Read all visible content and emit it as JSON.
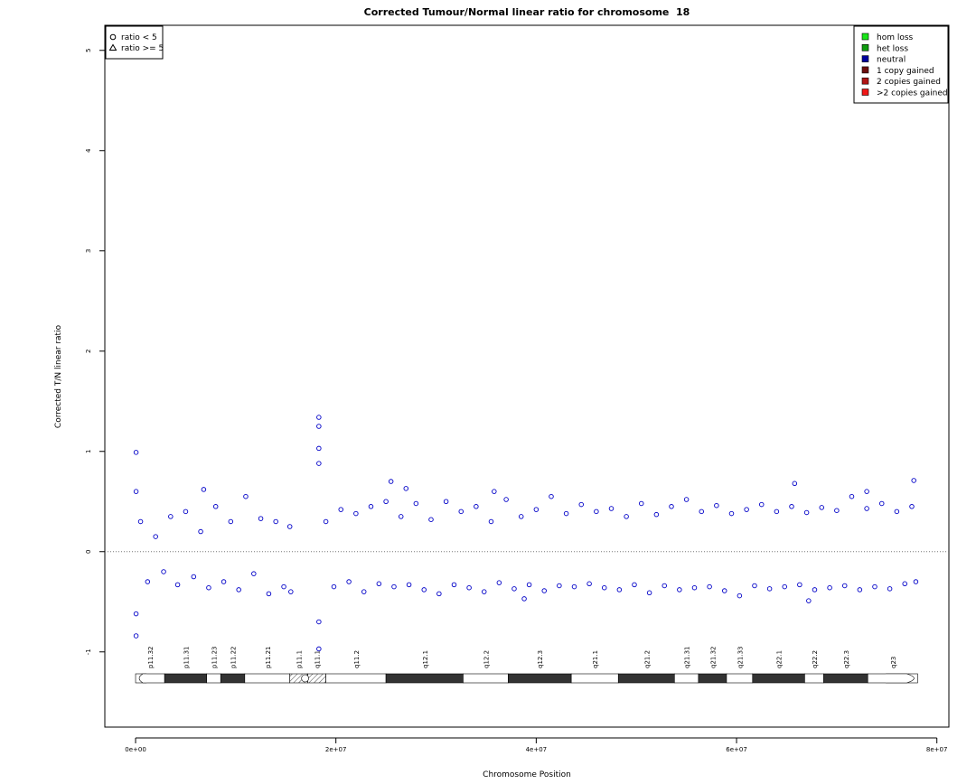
{
  "chart_data": {
    "type": "scatter",
    "title": "Corrected Tumour/Normal linear ratio for chromosome  18",
    "xlabel": "Chromosome Position",
    "ylabel": "Corrected T/N linear ratio",
    "xlim": [
      -3070000,
      81200000
    ],
    "ylim": [
      -1.75,
      5.25
    ],
    "xticks": [
      {
        "value": 0,
        "label": "0e+00"
      },
      {
        "value": 20000000,
        "label": "2e+07"
      },
      {
        "value": 40000000,
        "label": "4e+07"
      },
      {
        "value": 60000000,
        "label": "6e+07"
      },
      {
        "value": 80000000,
        "label": "8e+07"
      }
    ],
    "yticks": [
      -1,
      0,
      1,
      2,
      3,
      4,
      5
    ],
    "hline": 0,
    "series": [
      {
        "name": "neutral",
        "color": "#0000c8",
        "x": [
          50000,
          50000,
          50000,
          50000,
          6800000,
          18300000,
          18300000,
          18300000,
          18300000,
          18300000,
          18300000,
          25500000,
          27000000,
          35800000,
          38800000,
          65800000,
          67200000,
          77700000,
          73000000,
          500000,
          1200000,
          2000000,
          2800000,
          3500000,
          4200000,
          5000000,
          5800000,
          6500000,
          7300000,
          8000000,
          8800000,
          9500000,
          10300000,
          11000000,
          11800000,
          12500000,
          13300000,
          14000000,
          14800000,
          15400000,
          15500000,
          19000000,
          19800000,
          20500000,
          21300000,
          22000000,
          22800000,
          23500000,
          24300000,
          25000000,
          25800000,
          26500000,
          27300000,
          28000000,
          28800000,
          29500000,
          30300000,
          31000000,
          31800000,
          32500000,
          33300000,
          34000000,
          34800000,
          35500000,
          36300000,
          37000000,
          37800000,
          38500000,
          39300000,
          40000000,
          40800000,
          41500000,
          42300000,
          43000000,
          43800000,
          44500000,
          45300000,
          46000000,
          46800000,
          47500000,
          48300000,
          49000000,
          49800000,
          50500000,
          51300000,
          52000000,
          52800000,
          53500000,
          54300000,
          55000000,
          55800000,
          56500000,
          57300000,
          58000000,
          58800000,
          59500000,
          60300000,
          61000000,
          61800000,
          62500000,
          63300000,
          64000000,
          64800000,
          65500000,
          66300000,
          67000000,
          67800000,
          68500000,
          69300000,
          70000000,
          70800000,
          71500000,
          72300000,
          73000000,
          73800000,
          74500000,
          75300000,
          76000000,
          76800000,
          77500000,
          77900000
        ],
        "values": [
          0.99,
          -0.84,
          0.6,
          -0.62,
          0.62,
          1.34,
          1.25,
          1.03,
          0.88,
          -0.97,
          -0.7,
          0.7,
          0.63,
          0.6,
          -0.47,
          0.68,
          -0.49,
          0.71,
          0.6,
          0.3,
          -0.3,
          0.15,
          -0.2,
          0.35,
          -0.33,
          0.4,
          -0.25,
          0.2,
          -0.36,
          0.45,
          -0.3,
          0.3,
          -0.38,
          0.55,
          -0.22,
          0.33,
          -0.42,
          0.3,
          -0.35,
          0.25,
          -0.4,
          0.3,
          -0.35,
          0.42,
          -0.3,
          0.38,
          -0.4,
          0.45,
          -0.32,
          0.5,
          -0.35,
          0.35,
          -0.33,
          0.48,
          -0.38,
          0.32,
          -0.42,
          0.5,
          -0.33,
          0.4,
          -0.36,
          0.45,
          -0.4,
          0.3,
          -0.31,
          0.52,
          -0.37,
          0.35,
          -0.33,
          0.42,
          -0.39,
          0.55,
          -0.34,
          0.38,
          -0.35,
          0.47,
          -0.32,
          0.4,
          -0.36,
          0.43,
          -0.38,
          0.35,
          -0.33,
          0.48,
          -0.41,
          0.37,
          -0.34,
          0.45,
          -0.38,
          0.52,
          -0.36,
          0.4,
          -0.35,
          0.46,
          -0.39,
          0.38,
          -0.44,
          0.42,
          -0.34,
          0.47,
          -0.37,
          0.4,
          -0.35,
          0.45,
          -0.33,
          0.39,
          -0.38,
          0.44,
          -0.36,
          0.41,
          -0.34,
          0.55,
          -0.38,
          0.43,
          -0.35,
          0.48,
          -0.37,
          0.4,
          -0.32,
          0.45,
          -0.3
        ]
      }
    ],
    "shape_legend": [
      "ratio < 5",
      "ratio >= 5"
    ],
    "color_legend": [
      {
        "name": "hom loss",
        "color": "#19e619"
      },
      {
        "name": "het loss",
        "color": "#109c10"
      },
      {
        "name": "neutral",
        "color": "#00009c"
      },
      {
        "name": "1 copy gained",
        "color": "#6b0d0d"
      },
      {
        "name": "2 copies gained",
        "color": "#b01414"
      },
      {
        "name": ">2 copies gained",
        "color": "#f01818"
      }
    ],
    "bands": [
      {
        "name": "p11.32",
        "start": 0,
        "end": 2900000,
        "stain": "gneg"
      },
      {
        "name": "p11.31",
        "start": 2900000,
        "end": 7100000,
        "stain": "gpos"
      },
      {
        "name": "p11.23",
        "start": 7100000,
        "end": 8500000,
        "stain": "gneg"
      },
      {
        "name": "p11.22",
        "start": 8500000,
        "end": 10900000,
        "stain": "gpos"
      },
      {
        "name": "p11.21",
        "start": 10900000,
        "end": 15400000,
        "stain": "gneg"
      },
      {
        "name": "p11.1",
        "start": 15400000,
        "end": 17200000,
        "stain": "acen"
      },
      {
        "name": "q11.1",
        "start": 17200000,
        "end": 19000000,
        "stain": "acen"
      },
      {
        "name": "q11.2",
        "start": 19000000,
        "end": 25000000,
        "stain": "gneg"
      },
      {
        "name": "q12.1",
        "start": 25000000,
        "end": 32700000,
        "stain": "gpos"
      },
      {
        "name": "q12.2",
        "start": 32700000,
        "end": 37200000,
        "stain": "gneg"
      },
      {
        "name": "q12.3",
        "start": 37200000,
        "end": 43500000,
        "stain": "gpos"
      },
      {
        "name": "q21.1",
        "start": 43500000,
        "end": 48200000,
        "stain": "gneg"
      },
      {
        "name": "q21.2",
        "start": 48200000,
        "end": 53800000,
        "stain": "gpos"
      },
      {
        "name": "q21.31",
        "start": 53800000,
        "end": 56200000,
        "stain": "gneg"
      },
      {
        "name": "q21.32",
        "start": 56200000,
        "end": 59000000,
        "stain": "gpos"
      },
      {
        "name": "q21.33",
        "start": 59000000,
        "end": 61600000,
        "stain": "gneg"
      },
      {
        "name": "q22.1",
        "start": 61600000,
        "end": 66800000,
        "stain": "gpos"
      },
      {
        "name": "q22.2",
        "start": 66800000,
        "end": 68700000,
        "stain": "gneg"
      },
      {
        "name": "q22.3",
        "start": 68700000,
        "end": 73100000,
        "stain": "gpos"
      },
      {
        "name": "q23",
        "start": 73100000,
        "end": 78080000,
        "stain": "gneg"
      }
    ]
  }
}
